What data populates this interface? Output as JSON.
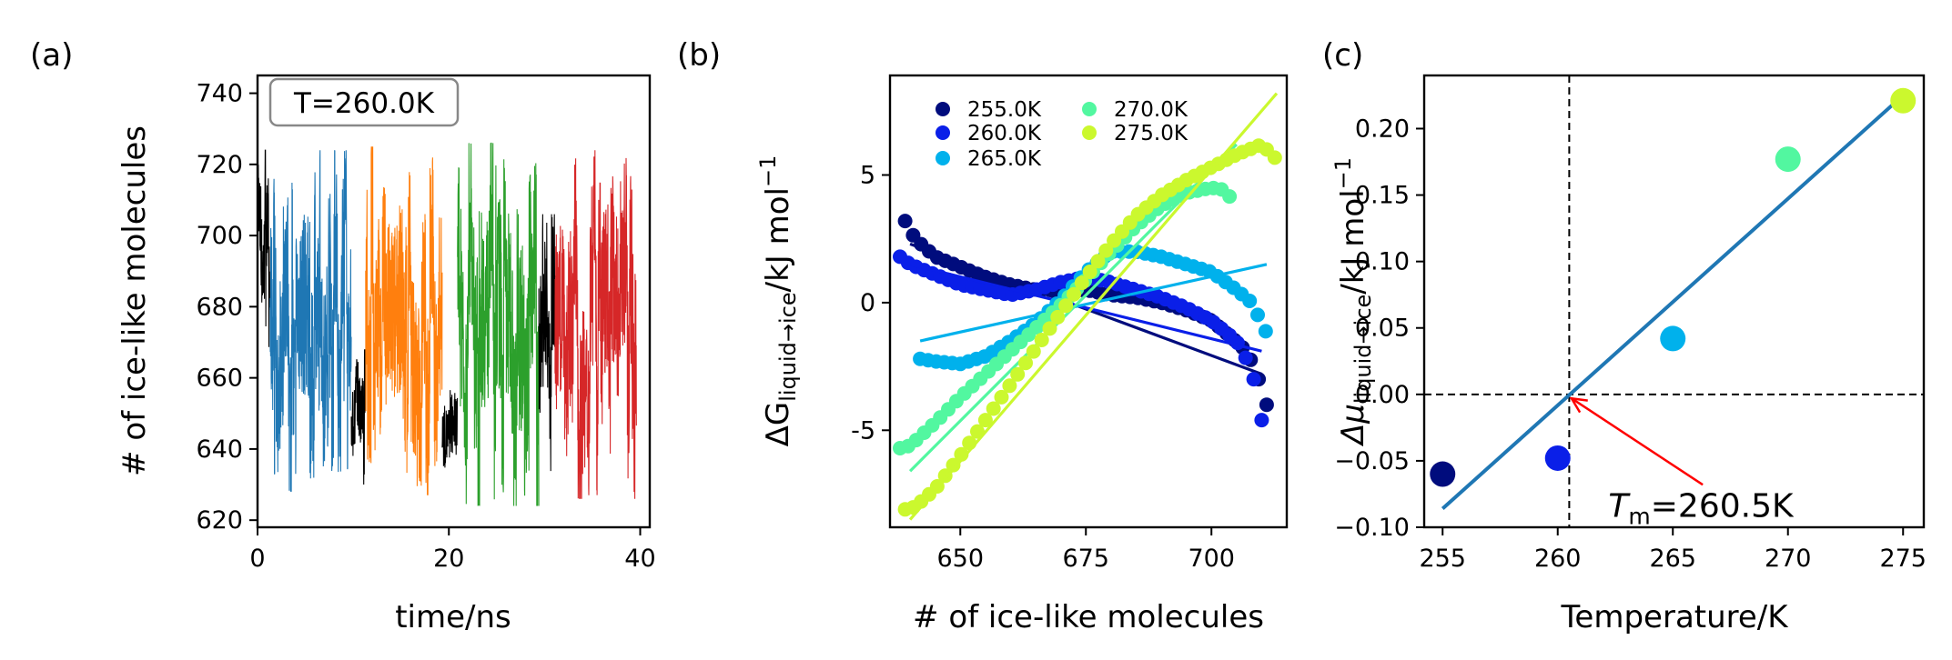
{
  "chart_data": [
    {
      "panel": "(a)",
      "type": "line",
      "xlabel": "time/ns",
      "ylabel": "# of ice-like molecules",
      "xlim": [
        0,
        41
      ],
      "ylim": [
        618,
        745
      ],
      "xticks": [
        0,
        20,
        40
      ],
      "yticks": [
        620,
        640,
        660,
        680,
        700,
        720,
        740
      ],
      "annotation": "T=260.0K",
      "segments": [
        {
          "t": [
            0,
            1.3
          ],
          "color": "#000000",
          "min": 668,
          "max": 724
        },
        {
          "t": [
            1.3,
            9.8
          ],
          "color": "#1f77b4",
          "min": 628,
          "max": 724
        },
        {
          "t": [
            9.8,
            11.3
          ],
          "color": "#000000",
          "min": 630,
          "max": 668
        },
        {
          "t": [
            11.3,
            19.3
          ],
          "color": "#ff7f0e",
          "min": 627,
          "max": 725
        },
        {
          "t": [
            19.3,
            20.9
          ],
          "color": "#000000",
          "min": 632,
          "max": 664
        },
        {
          "t": [
            20.9,
            29.4
          ],
          "color": "#2ca02c",
          "min": 624,
          "max": 726
        },
        {
          "t": [
            29.4,
            31.1
          ],
          "color": "#000000",
          "min": 632,
          "max": 706
        },
        {
          "t": [
            31.1,
            39.6
          ],
          "color": "#d62728",
          "min": 626,
          "max": 724
        }
      ]
    },
    {
      "panel": "(b)",
      "type": "scatter",
      "xlabel": "# of ice-like molecules",
      "ylabel": "ΔG",
      "ylabel_sub": "liquid→ice",
      "ylabel_unit": "/kJ mol",
      "ylabel_exp": "−1",
      "xlim": [
        636,
        715
      ],
      "ylim": [
        -8.8,
        8.9
      ],
      "xticks": [
        650,
        675,
        700
      ],
      "yticks": [
        -5,
        0,
        5
      ],
      "legend_position": "top-left",
      "series": [
        {
          "name": "255.0K",
          "color": "#000c7d",
          "x": [
            639,
            641,
            645,
            650,
            655,
            660,
            665,
            670,
            675,
            680,
            685,
            690,
            695,
            700,
            703,
            706,
            708,
            710,
            712
          ],
          "y": [
            3.2,
            2.5,
            1.8,
            1.4,
            1.0,
            0.7,
            0.5,
            0.5,
            0.5,
            0.3,
            0.2,
            0.0,
            -0.3,
            -0.7,
            -1.2,
            -1.7,
            -2.3,
            -3.3,
            -4.7
          ],
          "fit": [
            [
              640,
              2.3
            ],
            [
              710,
              -2.8
            ]
          ]
        },
        {
          "name": "260.0K",
          "color": "#0a1fe8",
          "x": [
            638,
            640,
            645,
            650,
            655,
            660,
            665,
            670,
            675,
            680,
            685,
            690,
            695,
            700,
            705,
            708,
            710
          ],
          "y": [
            1.8,
            1.5,
            1.1,
            0.7,
            0.5,
            0.3,
            0.5,
            0.8,
            1.0,
            0.8,
            0.5,
            0.2,
            -0.2,
            -0.7,
            -1.5,
            -2.6,
            -4.6
          ],
          "fit": [
            [
              640,
              1.5
            ],
            [
              710,
              -1.9
            ]
          ]
        },
        {
          "name": "265.0K",
          "color": "#00b1ec",
          "x": [
            642,
            645,
            650,
            655,
            660,
            665,
            670,
            675,
            680,
            685,
            690,
            695,
            700,
            705,
            708,
            711
          ],
          "y": [
            -2.2,
            -2.3,
            -2.4,
            -2.1,
            -1.5,
            -0.8,
            0.1,
            1.2,
            2.0,
            2.0,
            1.8,
            1.5,
            1.2,
            0.5,
            0.0,
            -1.2
          ],
          "fit": [
            [
              642,
              -1.5
            ],
            [
              711,
              1.5
            ]
          ]
        },
        {
          "name": "270.0K",
          "color": "#52f7a0",
          "x": [
            638,
            640,
            645,
            650,
            655,
            660,
            665,
            670,
            675,
            680,
            685,
            690,
            695,
            700,
            703,
            705
          ],
          "y": [
            -5.7,
            -5.6,
            -4.7,
            -3.7,
            -2.8,
            -1.9,
            -1.0,
            -0.1,
            0.9,
            2.0,
            3.0,
            3.8,
            4.3,
            4.5,
            4.4,
            3.6
          ],
          "fit": [
            [
              640,
              -6.6
            ],
            [
              705,
              6.2
            ]
          ]
        },
        {
          "name": "275.0K",
          "color": "#cbf82e",
          "x": [
            639,
            641,
            645,
            650,
            655,
            660,
            665,
            670,
            675,
            680,
            685,
            690,
            695,
            700,
            705,
            710,
            713
          ],
          "y": [
            -8.1,
            -8.0,
            -7.3,
            -6.0,
            -4.6,
            -3.2,
            -1.8,
            -0.4,
            1.0,
            2.3,
            3.4,
            4.2,
            4.8,
            5.3,
            5.8,
            6.2,
            5.6
          ],
          "fit": [
            [
              640,
              -8.5
            ],
            [
              713,
              8.2
            ]
          ]
        }
      ]
    },
    {
      "panel": "(c)",
      "type": "scatter",
      "xlabel": "Temperature/K",
      "ylabel": "Δμ",
      "ylabel_sub": "liquid→ice",
      "ylabel_unit": "/kJ mol",
      "ylabel_exp": "−1",
      "xlim": [
        254.2,
        275.9
      ],
      "ylim": [
        -0.1,
        0.24
      ],
      "xticks": [
        255,
        260,
        265,
        270,
        275
      ],
      "yticks": [
        -0.1,
        -0.05,
        0.0,
        0.05,
        0.1,
        0.15,
        0.2
      ],
      "ytick_labels": [
        "−0.10",
        "−0.05",
        "0.00",
        "0.05",
        "0.10",
        "0.15",
        "0.20"
      ],
      "points": [
        {
          "x": 255,
          "y": -0.06,
          "color": "#000c7d"
        },
        {
          "x": 260,
          "y": -0.048,
          "color": "#0a1fe8"
        },
        {
          "x": 265,
          "y": 0.042,
          "color": "#00b1ec"
        },
        {
          "x": 270,
          "y": 0.177,
          "color": "#52f7a0"
        },
        {
          "x": 275,
          "y": 0.221,
          "color": "#cbf82e"
        }
      ],
      "fit": [
        [
          255,
          -0.086
        ],
        [
          275,
          0.225
        ]
      ],
      "fit_color": "#1f77b4",
      "vline_x": 260.5,
      "hline_y": 0.0,
      "annotation": {
        "label_symbol": "T",
        "label_sub": "m",
        "label_rest": "=260.5K",
        "arrow_to": [
          260.6,
          -0.003
        ],
        "arrow_from": [
          266.3,
          -0.068
        ],
        "text_at": [
          262.2,
          -0.092
        ],
        "color": "red"
      }
    }
  ]
}
